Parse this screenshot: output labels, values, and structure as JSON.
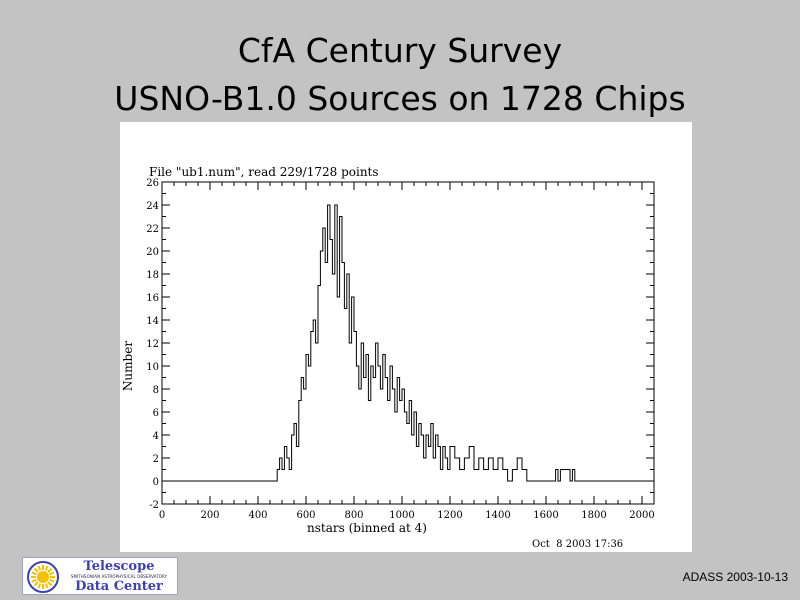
{
  "slide": {
    "title_line1": "CfA Century Survey",
    "title_line2": "USNO-B1.0 Sources on 1728 Chips",
    "footer_right": "ADASS 2003-10-13"
  },
  "logo": {
    "line1": "Telescope",
    "line2": "SMITHSONIAN ASTROPHYSICAL OBSERVATORY",
    "line3": "Data Center",
    "sun_color": "#f2c200",
    "ring_color": "#3c40b4"
  },
  "chart_data": {
    "type": "line",
    "style": "histogram-steps",
    "title": "File \"ub1.num\", read 229/1728 points",
    "xlabel": "nstars (binned at 4)",
    "ylabel": "Number",
    "timestamp": "Oct  8 2003 17:36",
    "xlim": [
      0,
      2050
    ],
    "ylim": [
      -2,
      26
    ],
    "xticks": [
      0,
      200,
      400,
      600,
      800,
      1000,
      1200,
      1400,
      1600,
      1800,
      2000
    ],
    "yticks": [
      -2,
      0,
      2,
      4,
      6,
      8,
      10,
      12,
      14,
      16,
      18,
      20,
      22,
      24,
      26
    ],
    "grid": false,
    "x": [
      0,
      480,
      490,
      500,
      510,
      520,
      530,
      540,
      550,
      560,
      570,
      580,
      590,
      600,
      610,
      620,
      630,
      640,
      650,
      660,
      670,
      680,
      690,
      700,
      710,
      720,
      730,
      740,
      750,
      760,
      770,
      780,
      790,
      800,
      810,
      820,
      830,
      840,
      850,
      860,
      870,
      880,
      890,
      900,
      910,
      920,
      930,
      940,
      950,
      960,
      970,
      980,
      990,
      1000,
      1010,
      1020,
      1030,
      1040,
      1050,
      1060,
      1070,
      1080,
      1090,
      1100,
      1110,
      1120,
      1130,
      1140,
      1150,
      1160,
      1170,
      1180,
      1190,
      1200,
      1220,
      1240,
      1260,
      1280,
      1300,
      1320,
      1340,
      1360,
      1380,
      1400,
      1420,
      1440,
      1460,
      1480,
      1500,
      1520,
      1540,
      1640,
      1650,
      1660,
      1700,
      1710,
      1720,
      2050
    ],
    "y": [
      0,
      1,
      2,
      1,
      3,
      2,
      1,
      4,
      5,
      3,
      7,
      9,
      8,
      11,
      10,
      13,
      14,
      12,
      17,
      20,
      22,
      19,
      24,
      21,
      18,
      24,
      16,
      23,
      19,
      15,
      18,
      12,
      16,
      13,
      10,
      8,
      12,
      9,
      11,
      7,
      10,
      9,
      12,
      10,
      8,
      11,
      9,
      7,
      10,
      8,
      6,
      9,
      7,
      8,
      6,
      5,
      7,
      4,
      6,
      3,
      5,
      4,
      2,
      4,
      3,
      5,
      2,
      4,
      3,
      1,
      3,
      2,
      1,
      3,
      2,
      1,
      2,
      3,
      1,
      2,
      1,
      2,
      1,
      2,
      1,
      0,
      1,
      2,
      1,
      0,
      0,
      1,
      0,
      1,
      0,
      1,
      0,
      0
    ]
  }
}
